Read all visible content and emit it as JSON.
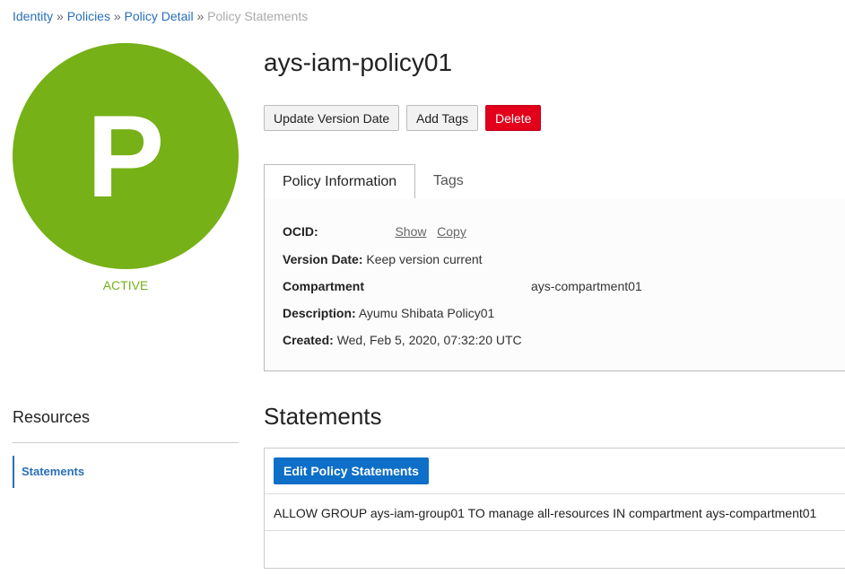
{
  "breadcrumb": [
    {
      "label": "Identity"
    },
    {
      "label": "Policies"
    },
    {
      "label": "Policy Detail"
    },
    {
      "label": "Policy Statements"
    }
  ],
  "breadcrumb_sep": "»",
  "avatar": {
    "letter": "P",
    "color": "#76b117"
  },
  "status": "ACTIVE",
  "title": "ays-iam-policy01",
  "actions": {
    "update": "Update Version Date",
    "tags": "Add Tags",
    "delete": "Delete"
  },
  "tabs": [
    {
      "label": "Policy Information",
      "active": true
    },
    {
      "label": "Tags",
      "active": false
    }
  ],
  "info": {
    "ocid_label": "OCID:",
    "show": "Show",
    "copy": "Copy",
    "version_label": "Version Date:",
    "version_value": "Keep version current",
    "compartment_label": "Compartment",
    "compartment_value": "ays-compartment01",
    "description_label": "Description:",
    "description_value": "Ayumu Shibata Policy01",
    "created_label": "Created:",
    "created_value": "Wed, Feb 5, 2020, 07:32:20 UTC"
  },
  "resources": {
    "title": "Resources",
    "items": [
      {
        "label": "Statements",
        "active": true
      }
    ]
  },
  "statements": {
    "title": "Statements",
    "edit_button": "Edit Policy Statements",
    "items": [
      "ALLOW GROUP ays-iam-group01 TO manage all-resources IN compartment ays-compartment01"
    ]
  }
}
